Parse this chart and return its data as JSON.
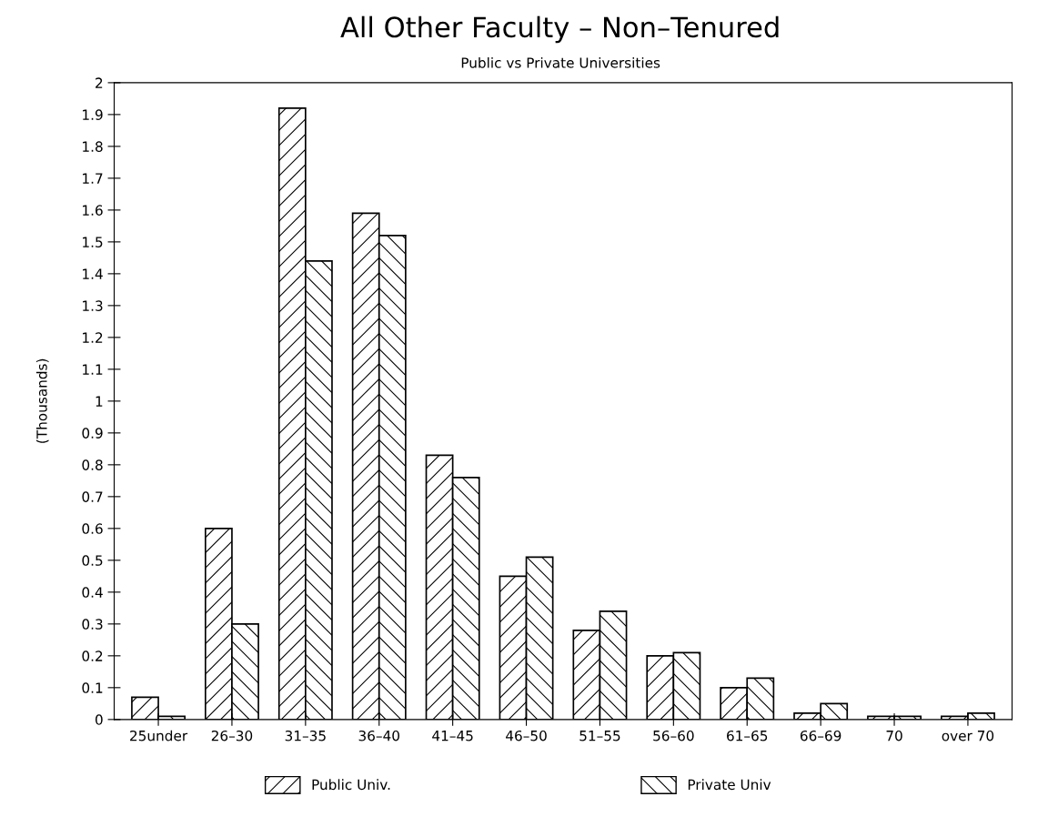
{
  "chart_data": {
    "type": "bar",
    "title": "All Other Faculty – Non–Tenured",
    "subtitle": "Public vs Private Universities",
    "ylabel": "(Thousands)",
    "categories": [
      "25under",
      "26–30",
      "31–35",
      "36–40",
      "41–45",
      "46–50",
      "51–55",
      "56–60",
      "61–65",
      "66–69",
      "70",
      "over 70"
    ],
    "series": [
      {
        "name": "Public Univ.",
        "color": "#000000",
        "values": [
          0.07,
          0.6,
          1.92,
          1.59,
          0.83,
          0.45,
          0.28,
          0.2,
          0.1,
          0.02,
          0.01,
          0.01
        ]
      },
      {
        "name": "Private Univ",
        "color": "#000000",
        "values": [
          0.01,
          0.3,
          1.44,
          1.52,
          0.76,
          0.51,
          0.34,
          0.21,
          0.13,
          0.05,
          0.01,
          0.02
        ]
      }
    ],
    "ylim": [
      0,
      2
    ],
    "yticks": [
      0,
      0.1,
      0.2,
      0.3,
      0.4,
      0.5,
      0.6,
      0.7,
      0.8,
      0.9,
      1,
      1.1,
      1.2,
      1.3,
      1.4,
      1.5,
      1.6,
      1.7,
      1.8,
      1.9,
      2
    ],
    "grid": false,
    "legend": "bottom"
  }
}
